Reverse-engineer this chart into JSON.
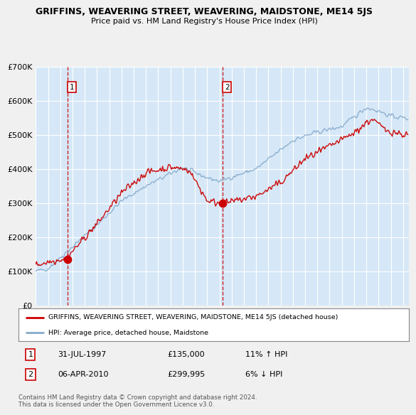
{
  "title": "GRIFFINS, WEAVERING STREET, WEAVERING, MAIDSTONE, ME14 5JS",
  "subtitle": "Price paid vs. HM Land Registry's House Price Index (HPI)",
  "ylim": [
    0,
    700000
  ],
  "yticks": [
    0,
    100000,
    200000,
    300000,
    400000,
    500000,
    600000,
    700000
  ],
  "ytick_labels": [
    "£0",
    "£100K",
    "£200K",
    "£300K",
    "£400K",
    "£500K",
    "£600K",
    "£700K"
  ],
  "background_color": "#d6e8f7",
  "fig_color": "#f0f0f0",
  "grid_color": "#ffffff",
  "red_line_color": "#cc0000",
  "blue_line_color": "#88aacc",
  "marker1_x": 1997.58,
  "marker1_y": 135000,
  "marker2_x": 2010.27,
  "marker2_y": 299995,
  "label1_text": "1",
  "label2_text": "2",
  "sale1_date": "31-JUL-1997",
  "sale1_price": "£135,000",
  "sale1_hpi": "11% ↑ HPI",
  "sale2_date": "06-APR-2010",
  "sale2_price": "£299,995",
  "sale2_hpi": "6% ↓ HPI",
  "legend_line1": "GRIFFINS, WEAVERING STREET, WEAVERING, MAIDSTONE, ME14 5JS (detached house)",
  "legend_line2": "HPI: Average price, detached house, Maidstone",
  "footer": "Contains HM Land Registry data © Crown copyright and database right 2024.\nThis data is licensed under the Open Government Licence v3.0.",
  "xmin": 1995,
  "xmax": 2025.5
}
